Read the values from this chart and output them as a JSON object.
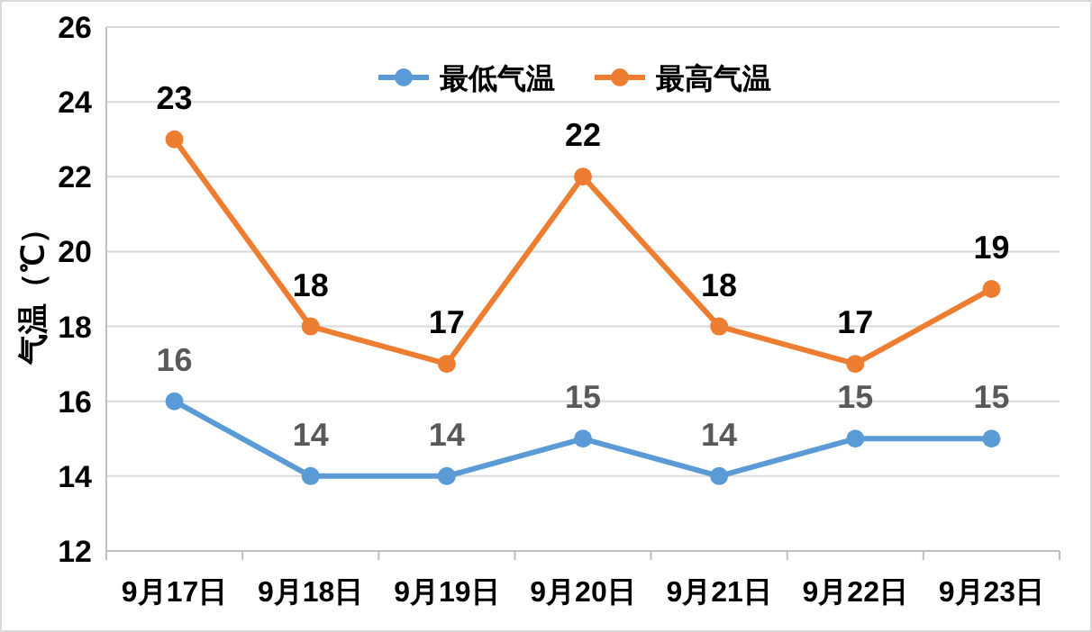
{
  "chart_data": {
    "type": "line",
    "ylabel": "气温（℃）",
    "categories": [
      "9月17日",
      "9月18日",
      "9月19日",
      "9月20日",
      "9月21日",
      "9月22日",
      "9月23日"
    ],
    "series": [
      {
        "name": "最低气温",
        "color": "#5b9bd5",
        "values": [
          16,
          14,
          14,
          15,
          14,
          15,
          15
        ]
      },
      {
        "name": "最高气温",
        "color": "#ed7d31",
        "values": [
          23,
          18,
          17,
          22,
          18,
          17,
          19
        ]
      }
    ],
    "ylim": [
      12,
      26
    ],
    "yticks": [
      12,
      14,
      16,
      18,
      20,
      22,
      24,
      26
    ],
    "grid": "y",
    "legend": "top",
    "marker": "circle",
    "line_style": "solid",
    "data_labels": true
  }
}
